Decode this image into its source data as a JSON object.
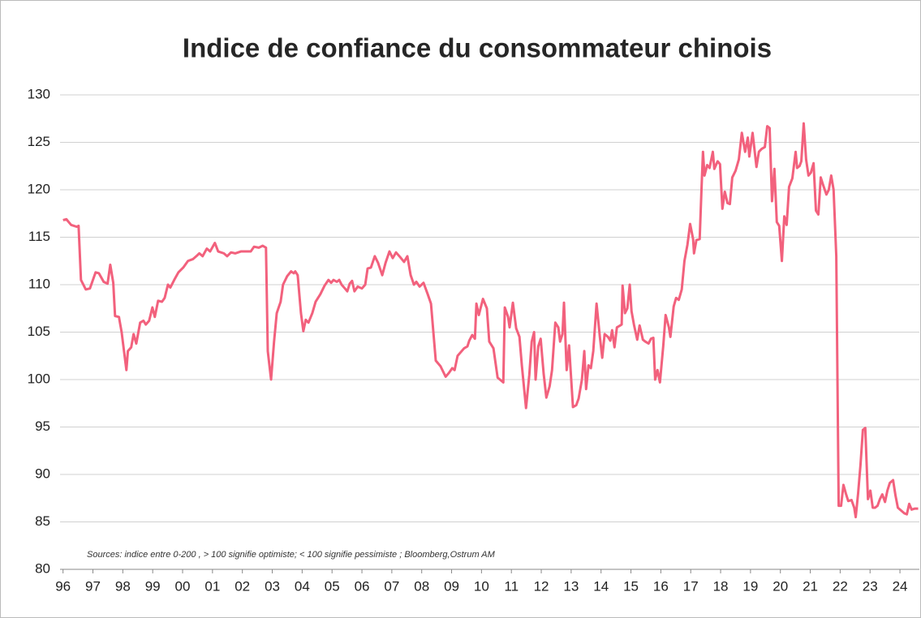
{
  "chart_data": {
    "type": "line",
    "title": "Indice de confiance du consommateur chinois",
    "note": "Sources:  indice entre 0-200 , > 100 signifie optimiste; < 100 signifie pessimiste ;  Bloomberg,Ostrum AM",
    "x": [
      1996.0,
      1996.11,
      1996.27,
      1996.46,
      1996.52,
      1996.6,
      1996.76,
      1996.9,
      1997.09,
      1997.2,
      1997.36,
      1997.49,
      1997.58,
      1997.68,
      1997.74,
      1997.87,
      1997.96,
      1998.12,
      1998.17,
      1998.28,
      1998.36,
      1998.45,
      1998.58,
      1998.69,
      1998.77,
      1998.88,
      1998.99,
      1999.07,
      1999.18,
      1999.31,
      1999.4,
      1999.51,
      1999.59,
      1999.72,
      1999.86,
      2000.02,
      2000.18,
      2000.35,
      2000.46,
      2000.56,
      2000.67,
      2000.81,
      2000.92,
      2001.08,
      2001.19,
      2001.38,
      2001.49,
      2001.62,
      2001.76,
      2001.95,
      2002.11,
      2002.28,
      2002.39,
      2002.55,
      2002.68,
      2002.79,
      2002.85,
      2002.96,
      2003.06,
      2003.15,
      2003.28,
      2003.36,
      2003.5,
      2003.63,
      2003.72,
      2003.77,
      2003.85,
      2003.96,
      2004.04,
      2004.12,
      2004.21,
      2004.34,
      2004.45,
      2004.61,
      2004.75,
      2004.88,
      2004.97,
      2005.05,
      2005.16,
      2005.24,
      2005.32,
      2005.43,
      2005.51,
      2005.59,
      2005.67,
      2005.75,
      2005.86,
      2006.0,
      2006.11,
      2006.19,
      2006.3,
      2006.43,
      2006.54,
      2006.68,
      2006.79,
      2006.92,
      2007.03,
      2007.14,
      2007.28,
      2007.41,
      2007.52,
      2007.63,
      2007.74,
      2007.82,
      2007.93,
      2008.06,
      2008.2,
      2008.31,
      2008.47,
      2008.63,
      2008.8,
      2008.91,
      2009.02,
      2009.1,
      2009.2,
      2009.31,
      2009.42,
      2009.53,
      2009.59,
      2009.69,
      2009.78,
      2009.83,
      2009.91,
      2010.05,
      2010.18,
      2010.26,
      2010.4,
      2010.54,
      2010.73,
      2010.78,
      2010.89,
      2010.94,
      2011.05,
      2011.16,
      2011.27,
      2011.35,
      2011.49,
      2011.6,
      2011.68,
      2011.76,
      2011.81,
      2011.9,
      2011.98,
      2012.08,
      2012.17,
      2012.28,
      2012.36,
      2012.47,
      2012.57,
      2012.63,
      2012.71,
      2012.76,
      2012.85,
      2012.93,
      2013.06,
      2013.17,
      2013.25,
      2013.36,
      2013.44,
      2013.5,
      2013.58,
      2013.66,
      2013.74,
      2013.85,
      2013.96,
      2014.04,
      2014.12,
      2014.23,
      2014.31,
      2014.37,
      2014.45,
      2014.53,
      2014.64,
      2014.69,
      2014.72,
      2014.8,
      2014.88,
      2014.96,
      2015.02,
      2015.1,
      2015.21,
      2015.29,
      2015.4,
      2015.48,
      2015.59,
      2015.67,
      2015.75,
      2015.81,
      2015.89,
      2015.97,
      2016.08,
      2016.16,
      2016.27,
      2016.32,
      2016.43,
      2016.51,
      2016.6,
      2016.7,
      2016.79,
      2016.89,
      2016.98,
      2017.08,
      2017.11,
      2017.19,
      2017.3,
      2017.36,
      2017.41,
      2017.46,
      2017.55,
      2017.63,
      2017.74,
      2017.79,
      2017.9,
      2017.98,
      2018.06,
      2018.14,
      2018.23,
      2018.31,
      2018.39,
      2018.5,
      2018.61,
      2018.71,
      2018.82,
      2018.91,
      2018.96,
      2019.07,
      2019.2,
      2019.28,
      2019.37,
      2019.48,
      2019.56,
      2019.64,
      2019.72,
      2019.8,
      2019.88,
      2019.96,
      2020.05,
      2020.13,
      2020.21,
      2020.29,
      2020.4,
      2020.51,
      2020.56,
      2020.64,
      2020.7,
      2020.78,
      2020.86,
      2020.94,
      2021.02,
      2021.11,
      2021.19,
      2021.27,
      2021.35,
      2021.43,
      2021.54,
      2021.62,
      2021.7,
      2021.78,
      2021.87,
      2021.95,
      2022.03,
      2022.11,
      2022.19,
      2022.27,
      2022.38,
      2022.47,
      2022.52,
      2022.6,
      2022.68,
      2022.76,
      2022.84,
      2022.93,
      2023.01,
      2023.09,
      2023.17,
      2023.25,
      2023.33,
      2023.41,
      2023.5,
      2023.58,
      2023.66,
      2023.77,
      2023.85,
      2023.93,
      2024.04,
      2024.15,
      2024.23,
      2024.31,
      2024.39,
      2024.5,
      2024.61
    ],
    "series": [
      {
        "color": "#f2617d",
        "values": [
          116.8,
          116.9,
          116.3,
          116.1,
          116.2,
          110.5,
          109.5,
          109.6,
          111.3,
          111.2,
          110.3,
          110.1,
          112.1,
          110.2,
          106.7,
          106.6,
          105,
          101,
          103,
          103.4,
          104.8,
          103.8,
          106,
          106.2,
          105.8,
          106.2,
          107.6,
          106.6,
          108.3,
          108.2,
          108.6,
          110,
          109.7,
          110.5,
          111.3,
          111.8,
          112.5,
          112.7,
          113,
          113.3,
          113,
          113.8,
          113.5,
          114.4,
          113.5,
          113.3,
          113,
          113.4,
          113.3,
          113.5,
          113.5,
          113.5,
          114,
          113.9,
          114.1,
          113.9,
          103,
          100,
          104,
          107,
          108.2,
          110,
          110.9,
          111.4,
          111.2,
          111.4,
          111,
          107,
          105.1,
          106.3,
          106,
          107,
          108.2,
          109,
          109.9,
          110.5,
          110.2,
          110.5,
          110.3,
          110.5,
          110,
          109.6,
          109.3,
          110.1,
          110.4,
          109.3,
          109.8,
          109.6,
          110,
          111.7,
          111.8,
          113,
          112.3,
          111,
          112.3,
          113.5,
          112.8,
          113.4,
          112.9,
          112.4,
          113,
          111,
          110,
          110.3,
          109.8,
          110.2,
          109,
          108,
          102,
          101.4,
          100.3,
          100.7,
          101.2,
          101,
          102.5,
          102.9,
          103.3,
          103.5,
          104.1,
          104.7,
          104.3,
          108,
          106.8,
          108.5,
          107.5,
          104,
          103.3,
          100.2,
          99.7,
          107.6,
          106.6,
          105.5,
          108.1,
          105.4,
          104.5,
          101.5,
          97,
          100.5,
          104,
          105,
          100,
          103.5,
          104.3,
          100.6,
          98.1,
          99.3,
          101,
          106,
          105.5,
          104,
          104.8,
          108.1,
          101,
          103.6,
          97.1,
          97.3,
          98,
          100,
          103,
          99,
          101.5,
          101.2,
          103,
          108,
          104.5,
          102.3,
          104.8,
          104.5,
          104.1,
          105.2,
          103.4,
          105.5,
          105.7,
          105.8,
          109.9,
          107,
          107.5,
          110,
          107.2,
          105.8,
          104.2,
          105.7,
          104.2,
          104,
          103.8,
          104.3,
          104.4,
          100,
          101,
          99.7,
          103.5,
          106.8,
          105.5,
          104.5,
          107.7,
          108.6,
          108.4,
          109.5,
          112.5,
          114.2,
          116.4,
          114.8,
          113.3,
          114.7,
          114.8,
          120,
          124,
          121.5,
          122.6,
          122.3,
          124,
          122.2,
          123,
          122.7,
          118,
          119.8,
          118.6,
          118.5,
          121.3,
          122,
          123.2,
          126,
          124,
          125.5,
          123.5,
          126,
          122.4,
          124,
          124.3,
          124.5,
          126.7,
          126.5,
          118.8,
          122.2,
          116.6,
          116.2,
          112.5,
          117.2,
          116.3,
          120.3,
          121.2,
          124,
          122.3,
          122.5,
          123,
          127,
          123.2,
          121.5,
          121.8,
          122.8,
          117.8,
          117.4,
          121.3,
          120.5,
          119.5,
          120,
          121.5,
          120,
          113,
          86.7,
          86.7,
          88.9,
          88,
          87.2,
          87.3,
          86.5,
          85.5,
          88,
          91,
          94.7,
          94.9,
          87.4,
          88.3,
          86.5,
          86.5,
          86.7,
          87.4,
          87.9,
          87.1,
          88.3,
          89.1,
          89.4,
          87.8,
          86.5,
          86.2,
          85.9,
          85.8,
          86.9,
          86.3,
          86.4,
          86.4
        ]
      }
    ],
    "xlim": [
      1995.9,
      2024.65
    ],
    "xticks": [
      {
        "value": 1996,
        "label": "96"
      },
      {
        "value": 1997,
        "label": "97"
      },
      {
        "value": 1998,
        "label": "98"
      },
      {
        "value": 1999,
        "label": "99"
      },
      {
        "value": 2000,
        "label": "00"
      },
      {
        "value": 2001,
        "label": "01"
      },
      {
        "value": 2002,
        "label": "02"
      },
      {
        "value": 2003,
        "label": "03"
      },
      {
        "value": 2004,
        "label": "04"
      },
      {
        "value": 2005,
        "label": "05"
      },
      {
        "value": 2006,
        "label": "06"
      },
      {
        "value": 2007,
        "label": "07"
      },
      {
        "value": 2008,
        "label": "08"
      },
      {
        "value": 2009,
        "label": "09"
      },
      {
        "value": 2010,
        "label": "10"
      },
      {
        "value": 2011,
        "label": "11"
      },
      {
        "value": 2012,
        "label": "12"
      },
      {
        "value": 2013,
        "label": "13"
      },
      {
        "value": 2014,
        "label": "14"
      },
      {
        "value": 2015,
        "label": "15"
      },
      {
        "value": 2016,
        "label": "16"
      },
      {
        "value": 2017,
        "label": "17"
      },
      {
        "value": 2018,
        "label": "18"
      },
      {
        "value": 2019,
        "label": "19"
      },
      {
        "value": 2020,
        "label": "20"
      },
      {
        "value": 2021,
        "label": "21"
      },
      {
        "value": 2022,
        "label": "22"
      },
      {
        "value": 2023,
        "label": "23"
      },
      {
        "value": 2024,
        "label": "24"
      }
    ],
    "ylim": [
      80,
      130
    ],
    "yticks": [
      80,
      85,
      90,
      95,
      100,
      105,
      110,
      115,
      120,
      125,
      130
    ],
    "grid": true
  }
}
